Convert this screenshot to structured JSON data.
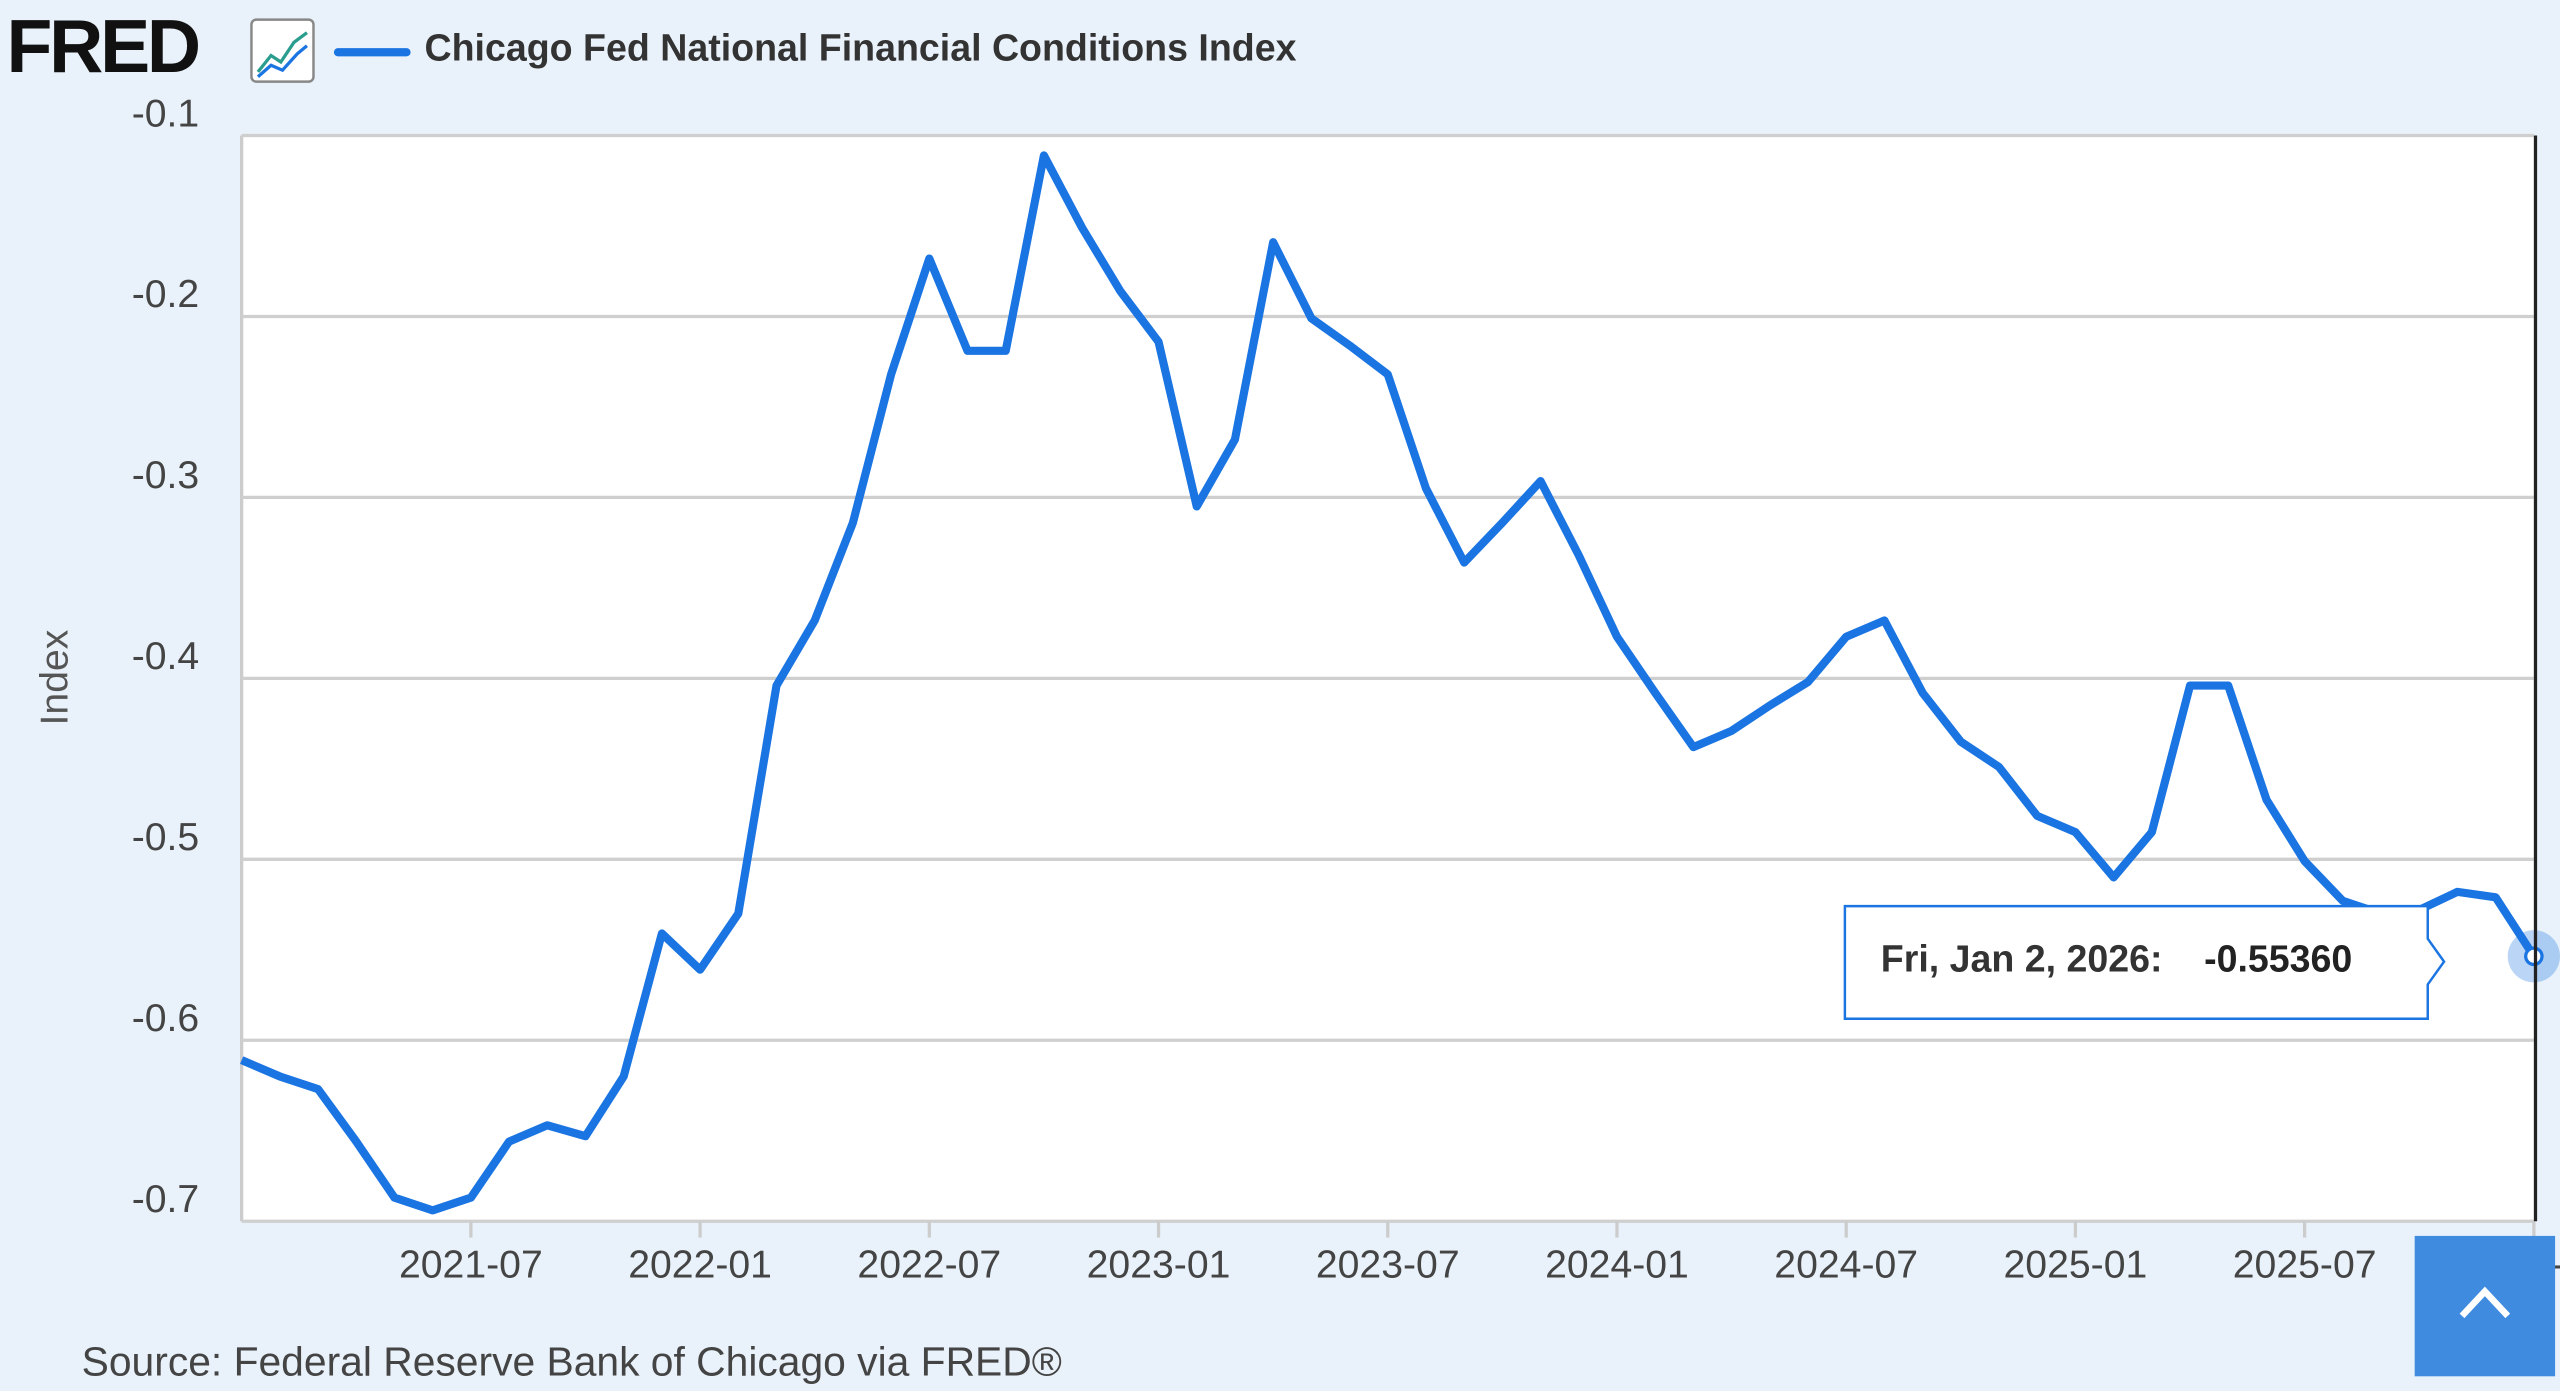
{
  "logo": "FRED",
  "chart_data": {
    "type": "line",
    "source": "Source: Federal Reserve Bank of Chicago via FRED®",
    "y_label": "Index",
    "x": [
      "2021-01",
      "2021-02",
      "2021-03",
      "2021-04",
      "2021-05",
      "2021-06",
      "2021-07",
      "2021-08",
      "2021-09",
      "2021-10",
      "2021-11",
      "2021-12",
      "2022-01",
      "2022-02",
      "2022-03",
      "2022-04",
      "2022-05",
      "2022-06",
      "2022-07",
      "2022-08",
      "2022-09",
      "2022-10",
      "2022-11",
      "2022-12",
      "2023-01",
      "2023-02",
      "2023-03",
      "2023-04",
      "2023-05",
      "2023-06",
      "2023-07",
      "2023-08",
      "2023-09",
      "2023-10",
      "2023-11",
      "2023-12",
      "2024-01",
      "2024-02",
      "2024-03",
      "2024-04",
      "2024-05",
      "2024-06",
      "2024-07",
      "2024-08",
      "2024-09",
      "2024-10",
      "2024-11",
      "2024-12",
      "2025-01",
      "2025-02",
      "2025-03",
      "2025-04",
      "2025-05",
      "2025-06",
      "2025-07",
      "2025-08",
      "2025-09",
      "2025-10",
      "2025-11",
      "2025-12",
      "2026-01"
    ],
    "series": [
      {
        "name": "Chicago Fed National Financial Conditions Index",
        "color": "#1a74e2",
        "values": [
          -0.611,
          -0.62,
          -0.627,
          -0.656,
          -0.687,
          -0.694,
          -0.687,
          -0.656,
          -0.647,
          -0.653,
          -0.62,
          -0.541,
          -0.561,
          -0.53,
          -0.404,
          -0.368,
          -0.314,
          -0.232,
          -0.168,
          -0.219,
          -0.219,
          -0.111,
          -0.151,
          -0.186,
          -0.214,
          -0.305,
          -0.268,
          -0.159,
          -0.201,
          -0.216,
          -0.232,
          -0.295,
          -0.336,
          -0.314,
          -0.291,
          -0.332,
          -0.377,
          -0.408,
          -0.438,
          -0.429,
          -0.415,
          -0.402,
          -0.377,
          -0.368,
          -0.408,
          -0.435,
          -0.449,
          -0.476,
          -0.485,
          -0.51,
          -0.485,
          -0.404,
          -0.404,
          -0.467,
          -0.501,
          -0.523,
          -0.53,
          -0.528,
          -0.518,
          -0.521,
          -0.5536
        ]
      }
    ],
    "xlim": [
      "2021-01",
      "2026-01"
    ],
    "xticks": [
      "2021-07",
      "2022-01",
      "2022-07",
      "2023-01",
      "2023-07",
      "2024-01",
      "2024-07",
      "2025-01",
      "2025-07",
      "2026-01"
    ],
    "ylim": [
      -0.7,
      -0.1
    ],
    "yticks": [
      -0.1,
      -0.2,
      -0.3,
      -0.4,
      -0.5,
      -0.6,
      -0.7
    ],
    "grid": true,
    "tooltip": {
      "date_label": "Fri, Jan 2, 2026:",
      "value": -0.5536,
      "value_label": "-0.55360"
    }
  }
}
